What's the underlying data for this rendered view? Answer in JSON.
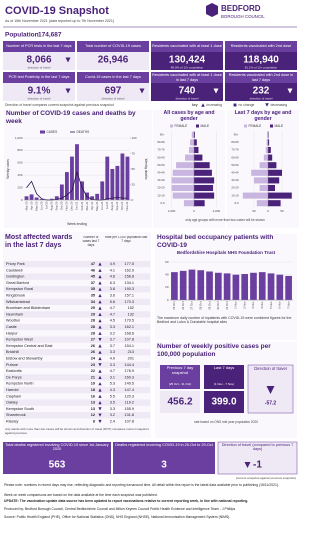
{
  "header": {
    "title": "COVID-19 Snapshot",
    "subtitle": "As of 15th November 2021 (data reported up to 7th November 2021)",
    "logo": "BEDFORD",
    "logo_sub": "BOROUGH COUNCIL"
  },
  "population": {
    "label": "Population",
    "value": "174,687"
  },
  "kpis": [
    {
      "label": "Number of PCR tests in the last 7 days",
      "value": "8,066",
      "note": "direction of travel",
      "dot": "down"
    },
    {
      "label": "Total number of COVID-19 cases",
      "value": "26,946"
    },
    {
      "label": "Residents vaccinated with at least 1 dose",
      "value": "130,424",
      "note": "89.0% of 12+ population"
    },
    {
      "label": "Residents vaccinated with 2nd dose",
      "value": "118,940",
      "note": "81.1% of 12+ population"
    },
    {
      "label": "PCR test Positivity in the last 7 days",
      "value": "9.1%",
      "note": "direction of travel",
      "dot": "down"
    },
    {
      "label": "Covid-19 cases in the last 7 days",
      "value": "697",
      "note": "direction of travel",
      "dot": "down"
    },
    {
      "label": "Residents vaccinated with at least 1 dose in last 7 days",
      "value": "740",
      "note": "direction of travel",
      "dot": "down"
    },
    {
      "label": "Residents vaccinated with 2nd dose in last 7 days",
      "value": "232",
      "note": "direction of travel",
      "dot": "down"
    }
  ],
  "dot_key": {
    "text": "Direction of travel compares current snapshot against previous snapshot",
    "key": "key",
    "items": [
      {
        "dir": "up",
        "label": "increasing"
      },
      {
        "dir": "same",
        "label": "no change"
      },
      {
        "dir": "down",
        "label": "decreasing"
      }
    ]
  },
  "chart_data": [
    {
      "type": "bar",
      "title": "Number of COVID-19 cases and deaths by week",
      "categories": [
        "Mar-20",
        "Apr-20",
        "May-20",
        "Jun-20",
        "Jul-20",
        "Aug-20",
        "Sep-20",
        "Oct-20",
        "Nov-20",
        "Dec-20",
        "Jan-21",
        "Feb-21",
        "Mar-21",
        "Apr-21",
        "May-21",
        "Jun-21",
        "Jul-21",
        "Aug-21",
        "Sep-21",
        "Oct-21",
        "Nov-21"
      ],
      "series": [
        {
          "name": "CASES",
          "color": "#6b3fa0",
          "values": [
            60,
            90,
            40,
            15,
            10,
            20,
            60,
            250,
            450,
            700,
            900,
            300,
            120,
            60,
            100,
            300,
            700,
            500,
            550,
            750,
            700
          ]
        },
        {
          "name": "DEATHS",
          "color": "#2b1148",
          "axis": "y2",
          "values": [
            20,
            30,
            10,
            2,
            0,
            0,
            1,
            3,
            8,
            15,
            45,
            20,
            5,
            1,
            0,
            0,
            2,
            3,
            4,
            3,
            3
          ]
        }
      ],
      "ylim": [
        0,
        1000
      ],
      "yticks": [
        0,
        200,
        400,
        600,
        800,
        {
          "value": 1000,
          "label": "1,000"
        }
      ],
      "y2lim": [
        0,
        100
      ],
      "y2ticks": [
        0,
        25,
        50,
        75,
        100
      ],
      "xlabel": "Week ending",
      "ylabel": "Weekly cases",
      "y2label": "Weekly deaths",
      "grid": true
    },
    {
      "type": "pyramid",
      "title": "All cases by age and gender",
      "categories": [
        "0-9",
        "10-19",
        "20-29",
        "30-39",
        "40-49",
        "50-59",
        "60-69",
        "70-79",
        "80-89",
        "90+"
      ],
      "series": [
        {
          "name": "FEMALE",
          "color": "#c9b6e0",
          "values": [
            900,
            1900,
            2000,
            2000,
            1900,
            1600,
            800,
            450,
            350,
            200
          ]
        },
        {
          "name": "MALE",
          "color": "#4b2279",
          "values": [
            950,
            1800,
            1700,
            1800,
            1600,
            1400,
            750,
            400,
            250,
            80
          ]
        }
      ],
      "xlim": [
        0,
        2500
      ],
      "xticks": [
        0,
        {
          "value": 2000,
          "label": "2,000"
        }
      ]
    },
    {
      "type": "pyramid",
      "title": "Last 7 days by age and gender",
      "categories": [
        "0-9",
        "10-19",
        "20-29",
        "30-39",
        "40-49",
        "50-59",
        "60-69",
        "70-79",
        "80-89",
        "90+"
      ],
      "series": [
        {
          "name": "FEMALE",
          "color": "#c9b6e0",
          "values": [
            40,
            90,
            30,
            50,
            60,
            30,
            15,
            8,
            5,
            3
          ]
        },
        {
          "name": "MALE",
          "color": "#4b2279",
          "values": [
            45,
            85,
            25,
            40,
            50,
            30,
            15,
            10,
            4,
            2
          ]
        }
      ],
      "xlim": [
        0,
        100
      ],
      "xticks": [
        0,
        50
      ]
    },
    {
      "type": "bar",
      "title": "Hospital bed occupancy patients with COVID-19",
      "subtitle": "Bedfordshire Hospitals NHS Foundation Trust",
      "categories": [
        "25 Oct",
        "26 Oct",
        "27 Oct",
        "28 Oct",
        "29 Oct",
        "30 Oct",
        "31 Oct",
        "1 Nov",
        "2 Nov",
        "3 Nov",
        "4 Nov",
        "5 Nov",
        "6 Nov",
        "7 Nov"
      ],
      "values": [
        44,
        46,
        48,
        47,
        45,
        43,
        42,
        40,
        41,
        43,
        44,
        42,
        40,
        38
      ],
      "color": "#6b3fa0",
      "ylim": [
        0,
        60
      ],
      "yticks": [
        0,
        20,
        40,
        60
      ],
      "grid": true,
      "note": "The maximum daily number of inpatients with COVID-19 were combined figures for the Bedford and Luton & Dunstable hospital sites"
    }
  ],
  "pyramid_note": "only age groups with more than two cases will be shown",
  "wards": {
    "title": "Most affected wards in the last 7 days",
    "headers": [
      "Number of cases last 7 days",
      "Rate per 1,000 population last 7 days"
    ],
    "rows": [
      [
        "Priory Park",
        47,
        "up",
        4.9,
        177.5
      ],
      [
        "Cauldwell",
        46,
        "up",
        4.1,
        162.9
      ],
      [
        "Goldington",
        45,
        "up",
        4.6,
        156.8
      ],
      [
        "Great Barford",
        37,
        "up",
        6.3,
        134.1
      ],
      [
        "Kempston Rural",
        35,
        "up",
        3.8,
        190.3
      ],
      [
        "Kingsbrook",
        35,
        "up",
        3.6,
        157.1
      ],
      [
        "Wilshamstead",
        34,
        "up",
        5.6,
        170.3
      ],
      [
        "Bromham and Biddenham",
        29,
        "up",
        4.7,
        152.0
      ],
      [
        "Newnham",
        29,
        "up",
        4.7,
        132.0
      ],
      [
        "Wootton",
        28,
        "up",
        4.5,
        170.5
      ],
      [
        "Castle",
        28,
        "up",
        3.3,
        162.1
      ],
      [
        "Harpur",
        28,
        "up",
        3.2,
        168.6
      ],
      [
        "Kempston West",
        27,
        "down",
        3.7,
        107.8
      ],
      [
        "Kempston Central and East",
        26,
        "up",
        3.7,
        154.1
      ],
      [
        "Brickhill",
        26,
        "up",
        3.3,
        213.0
      ],
      [
        "Elstow and Stewartby",
        24,
        "up",
        4.9,
        201.0
      ],
      [
        "Putnoe",
        23,
        "down",
        3.3,
        144.4
      ],
      [
        "Eastcotts",
        22,
        "up",
        4.7,
        176.9
      ],
      [
        "De Parys",
        21,
        "up",
        3.1,
        160.3
      ],
      [
        "Kempston North",
        19,
        "up",
        5.3,
        140.5
      ],
      [
        "Harrold",
        18,
        "up",
        4.3,
        147.4
      ],
      [
        "Clapham",
        16,
        "up",
        5.5,
        120.3
      ],
      [
        "Oakley",
        13,
        "up",
        3.5,
        119.2
      ],
      [
        "Kempston South",
        13,
        "down",
        3.3,
        155.9
      ],
      [
        "Sharnbrook",
        12,
        "down",
        3.2,
        131.8
      ],
      [
        "Riseley",
        8,
        "down",
        2.4,
        107.8
      ]
    ],
    "note": "only wards with more than two cases will be shown and direction of travel (DOT) compares current snapshot against previous"
  },
  "weekly_rate": {
    "title": "Number of weekly positive cases per 100,000 population",
    "previous": {
      "label": "Previous 7 day snapshot",
      "period": "(25 Oct - 31 Oct)",
      "value": "456.2"
    },
    "last": {
      "label": "Last 7 days",
      "period": "(1 Nov - 7 Nov)",
      "value": "399.0"
    },
    "direction": {
      "label": "Direction of travel",
      "value": "-57.2",
      "dot": "down"
    },
    "note": "rate based on ONS mid year population 2020"
  },
  "deaths": [
    {
      "label": "Total deaths registered involving COVID-19 since 1st January 2020",
      "value": "563"
    },
    {
      "label": "Deaths registered involving COVID-19 in 25-Oct to 29-Oct",
      "value": "3"
    },
    {
      "label": "Direction of travel (compared to previous 7 days)",
      "value": "-1",
      "dot": "down"
    }
  ],
  "deaths_note": "(current snapshot against previous snapshot)",
  "footer": [
    "Please note: numbers in recent days may rise, reflecting diagnostic and reporting turnaround time. All detail within this report is the latest data available prior to publishing (15/11/2021).",
    "Week on week comparisons are based on the data available at the time each snapshot was published.",
    "UPDATE: The vaccination update data source has been updated to report vaccinations relative to current reporting week, in line with national reporting.",
    "Produced by: Bedford Borough Council, Central Bedfordshire Council and Milton Keynes Council Public Health Evidence and Intelligence Team - J Phillips",
    "Source: Public Health England (PHE), Office for National Statistics (ONS), NHS England (NHSE), National Immunisation Management System (NIMS)."
  ]
}
